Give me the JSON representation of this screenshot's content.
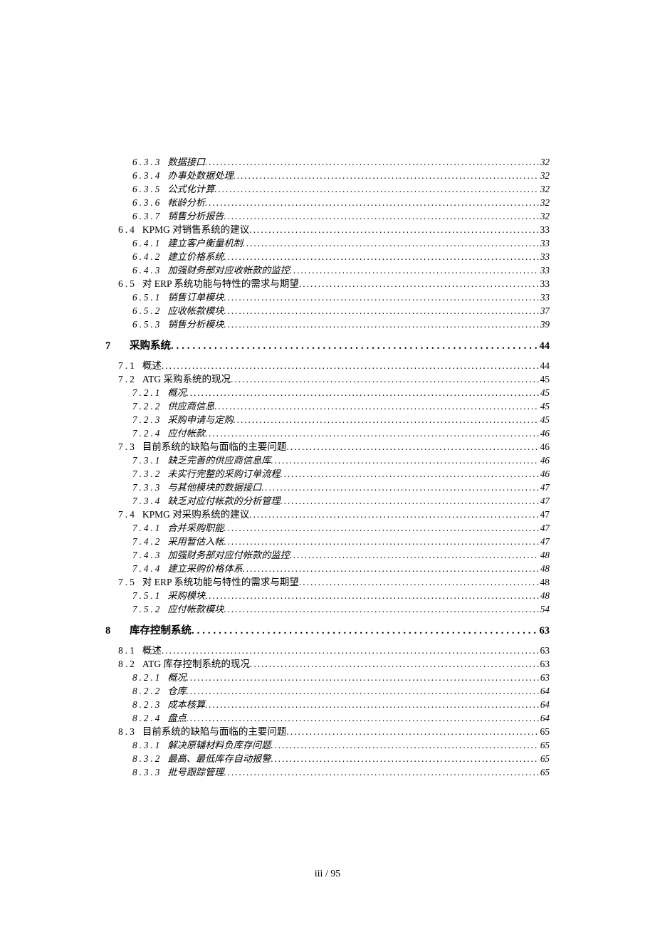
{
  "toc": [
    {
      "level": 3,
      "num": "6.3.3",
      "label": "数据接口",
      "page": "32"
    },
    {
      "level": 3,
      "num": "6.3.4",
      "label": "办事处数据处理",
      "page": "32"
    },
    {
      "level": 3,
      "num": "6.3.5",
      "label": "公式化计算",
      "page": "32"
    },
    {
      "level": 3,
      "num": "6.3.6",
      "label": "帐龄分析",
      "page": "32"
    },
    {
      "level": 3,
      "num": "6.3.7",
      "label": "销售分析报告",
      "page": "32"
    },
    {
      "level": 2,
      "num": "6.4",
      "label": "KPMG 对销售系统的建议",
      "page": "33"
    },
    {
      "level": 3,
      "num": "6.4.1",
      "label": "建立客户衡量机制",
      "page": "33"
    },
    {
      "level": 3,
      "num": "6.4.2",
      "label": "建立价格系统",
      "page": "33"
    },
    {
      "level": 3,
      "num": "6.4.3",
      "label": "加强财务部对应收帐款的监控",
      "page": "33"
    },
    {
      "level": 2,
      "num": "6.5",
      "label": "对 ERP 系统功能与特性的需求与期望",
      "page": "33"
    },
    {
      "level": 3,
      "num": "6.5.1",
      "label": "销售订单模块",
      "page": "33"
    },
    {
      "level": 3,
      "num": "6.5.2",
      "label": "应收帐款模块",
      "page": "37"
    },
    {
      "level": 3,
      "num": "6.5.3",
      "label": "销售分析模块",
      "page": "39"
    },
    {
      "level": 1,
      "num": "7",
      "label": "采购系统",
      "page": "44"
    },
    {
      "level": 2,
      "num": "7.1",
      "label": "概述",
      "page": "44"
    },
    {
      "level": 2,
      "num": "7.2",
      "label": "ATG 采购系统的现况",
      "page": "45"
    },
    {
      "level": 3,
      "num": "7.2.1",
      "label": "概况",
      "page": "45"
    },
    {
      "level": 3,
      "num": "7.2.2",
      "label": "供应商信息",
      "page": "45"
    },
    {
      "level": 3,
      "num": "7.2.3",
      "label": "采购申请与定购",
      "page": "45"
    },
    {
      "level": 3,
      "num": "7.2.4",
      "label": "应付帐款",
      "page": "46"
    },
    {
      "level": 2,
      "num": "7.3",
      "label": "目前系统的缺陷与面临的主要问题",
      "page": "46"
    },
    {
      "level": 3,
      "num": "7.3.1",
      "label": "缺乏完善的供应商信息库",
      "page": "46"
    },
    {
      "level": 3,
      "num": "7.3.2",
      "label": "未实行完整的采购订单流程",
      "page": "46"
    },
    {
      "level": 3,
      "num": "7.3.3",
      "label": "与其他模块的数据接口",
      "page": "47"
    },
    {
      "level": 3,
      "num": "7.3.4",
      "label": "缺乏对应付帐款的分析管理",
      "page": "47"
    },
    {
      "level": 2,
      "num": "7.4",
      "label": "KPMG 对采购系统的建议",
      "page": "47"
    },
    {
      "level": 3,
      "num": "7.4.1",
      "label": "合并采购职能",
      "page": "47"
    },
    {
      "level": 3,
      "num": "7.4.2",
      "label": "采用暂估入帐",
      "page": "47"
    },
    {
      "level": 3,
      "num": "7.4.3",
      "label": "加强财务部对应付帐款的监控",
      "page": "48"
    },
    {
      "level": 3,
      "num": "7.4.4",
      "label": "建立采购价格体系",
      "page": "48"
    },
    {
      "level": 2,
      "num": "7.5",
      "label": "对 ERP 系统功能与特性的需求与期望",
      "page": "48"
    },
    {
      "level": 3,
      "num": "7.5.1",
      "label": "采购模块",
      "page": "48"
    },
    {
      "level": 3,
      "num": "7.5.2",
      "label": "应付帐款模块",
      "page": "54"
    },
    {
      "level": 1,
      "num": "8",
      "label": "库存控制系统",
      "page": "63"
    },
    {
      "level": 2,
      "num": "8.1",
      "label": "概述",
      "page": "63"
    },
    {
      "level": 2,
      "num": "8.2",
      "label": "ATG 库存控制系统的现况",
      "page": "63"
    },
    {
      "level": 3,
      "num": "8.2.1",
      "label": "概况",
      "page": "63"
    },
    {
      "level": 3,
      "num": "8.2.2",
      "label": "仓库",
      "page": "64"
    },
    {
      "level": 3,
      "num": "8.2.3",
      "label": "成本核算",
      "page": "64"
    },
    {
      "level": 3,
      "num": "8.2.4",
      "label": "盘点",
      "page": "64"
    },
    {
      "level": 2,
      "num": "8.3",
      "label": "目前系统的缺陷与面临的主要问题",
      "page": "65"
    },
    {
      "level": 3,
      "num": "8.3.1",
      "label": "解决原辅材料负库存问题",
      "page": "65"
    },
    {
      "level": 3,
      "num": "8.3.2",
      "label": "最高、最低库存自动报警",
      "page": "65"
    },
    {
      "level": 3,
      "num": "8.3.3",
      "label": "批号跟踪管理",
      "page": "65"
    }
  ],
  "footer": "iii / 95"
}
